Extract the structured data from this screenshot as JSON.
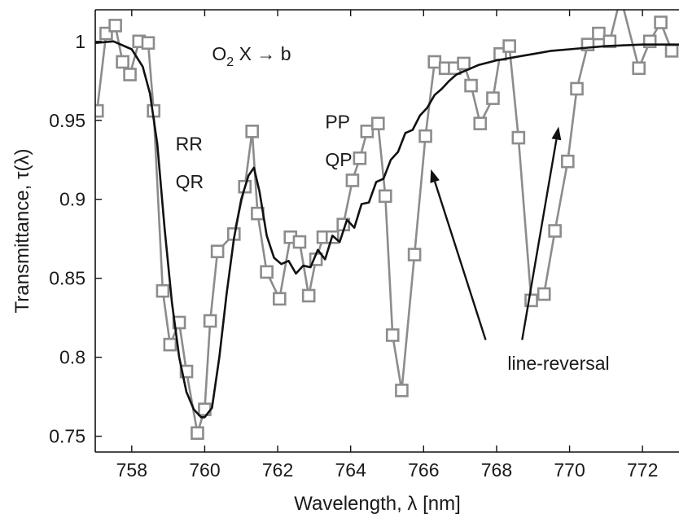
{
  "chart_data": {
    "type": "line",
    "xlabel": "Wavelength, λ [nm]",
    "ylabel": "Transmittance, τ(λ)",
    "xlim": [
      757,
      773
    ],
    "ylim": [
      0.74,
      1.02
    ],
    "xticks": [
      758,
      760,
      762,
      764,
      766,
      768,
      770,
      772
    ],
    "xtick_labels": [
      "758",
      "760",
      "762",
      "764",
      "766",
      "768",
      "770",
      "772"
    ],
    "yticks": [
      0.75,
      0.8,
      0.85,
      0.9,
      0.95,
      1.0
    ],
    "ytick_labels": [
      "0.75",
      "0.8",
      "0.85",
      "0.9",
      "0.95",
      "1"
    ],
    "grid": false,
    "legend": "none",
    "series": [
      {
        "style": "line-with-square-markers",
        "color": "#8c8c8c",
        "x": [
          757.05,
          757.3,
          757.55,
          757.75,
          757.95,
          758.2,
          758.45,
          758.6,
          758.85,
          759.05,
          759.3,
          759.5,
          759.8,
          760.0,
          760.15,
          760.35,
          760.8,
          761.1,
          761.3,
          761.45,
          761.7,
          762.05,
          762.35,
          762.6,
          762.85,
          763.05,
          763.25,
          763.5,
          763.8,
          764.05,
          764.25,
          764.45,
          764.75,
          764.95,
          765.15,
          765.4,
          765.75,
          766.05,
          766.3,
          766.6,
          766.85,
          767.1,
          767.3,
          767.55,
          767.9,
          768.1,
          768.35,
          768.6,
          768.95,
          769.3,
          769.6,
          769.95,
          770.2,
          770.5,
          770.8,
          771.1,
          771.4,
          771.9,
          772.2,
          772.5,
          772.8
        ],
        "y": [
          0.956,
          1.005,
          1.01,
          0.987,
          0.979,
          1.0,
          0.999,
          0.956,
          0.842,
          0.808,
          0.822,
          0.791,
          0.752,
          0.767,
          0.823,
          0.867,
          0.878,
          0.908,
          0.943,
          0.891,
          0.854,
          0.837,
          0.876,
          0.873,
          0.839,
          0.862,
          0.876,
          0.876,
          0.884,
          0.912,
          0.926,
          0.943,
          0.948,
          0.902,
          0.814,
          0.779,
          0.865,
          0.94,
          0.987,
          0.983,
          0.983,
          0.986,
          0.972,
          0.948,
          0.964,
          0.992,
          0.997,
          0.939,
          0.836,
          0.84,
          0.88,
          0.924,
          0.97,
          0.998,
          1.005,
          1.0,
          1.028,
          0.983,
          1.0,
          1.012,
          0.994
        ]
      },
      {
        "style": "line",
        "color": "#111111",
        "x": [
          757.0,
          757.5,
          758.0,
          758.3,
          758.5,
          758.7,
          758.9,
          759.1,
          759.3,
          759.5,
          759.7,
          759.9,
          760.0,
          760.2,
          760.4,
          760.6,
          760.8,
          761.0,
          761.2,
          761.35,
          761.5,
          761.7,
          761.9,
          762.1,
          762.3,
          762.5,
          762.7,
          762.9,
          763.1,
          763.3,
          763.5,
          763.7,
          763.9,
          764.1,
          764.3,
          764.5,
          764.7,
          764.9,
          765.1,
          765.3,
          765.5,
          765.7,
          765.9,
          766.1,
          766.3,
          766.5,
          766.7,
          766.9,
          767.2,
          767.5,
          768.0,
          768.5,
          769.0,
          769.5,
          770.0,
          770.5,
          771.0,
          772.0,
          773.0
        ],
        "y": [
          0.999,
          1.0,
          0.995,
          0.984,
          0.967,
          0.935,
          0.882,
          0.835,
          0.8,
          0.778,
          0.767,
          0.762,
          0.762,
          0.768,
          0.8,
          0.84,
          0.875,
          0.9,
          0.915,
          0.92,
          0.905,
          0.877,
          0.863,
          0.859,
          0.861,
          0.853,
          0.858,
          0.857,
          0.868,
          0.862,
          0.877,
          0.873,
          0.887,
          0.882,
          0.897,
          0.898,
          0.911,
          0.913,
          0.925,
          0.93,
          0.942,
          0.944,
          0.953,
          0.958,
          0.966,
          0.97,
          0.975,
          0.979,
          0.982,
          0.985,
          0.988,
          0.99,
          0.992,
          0.994,
          0.995,
          0.996,
          0.997,
          0.998,
          0.998
        ]
      }
    ],
    "annotations": [
      {
        "kind": "molecule-label",
        "text": "O",
        "sub": "2",
        "rest": " X → b",
        "x": 760.2,
        "y": 0.988
      },
      {
        "kind": "text",
        "text": "RR",
        "x": 759.2,
        "y": 0.931
      },
      {
        "kind": "text",
        "text": "QR",
        "x": 759.2,
        "y": 0.907
      },
      {
        "kind": "text",
        "text": "PP",
        "x": 763.3,
        "y": 0.945
      },
      {
        "kind": "text",
        "text": "QP",
        "x": 763.3,
        "y": 0.921
      },
      {
        "kind": "text",
        "text": "line-reversal",
        "x": 768.3,
        "y": 0.792
      }
    ],
    "arrows": [
      {
        "from": [
          767.7,
          0.811
        ],
        "to": [
          766.2,
          0.919
        ],
        "color": "#111111"
      },
      {
        "from": [
          768.7,
          0.811
        ],
        "to": [
          769.7,
          0.946
        ],
        "color": "#111111"
      }
    ]
  }
}
